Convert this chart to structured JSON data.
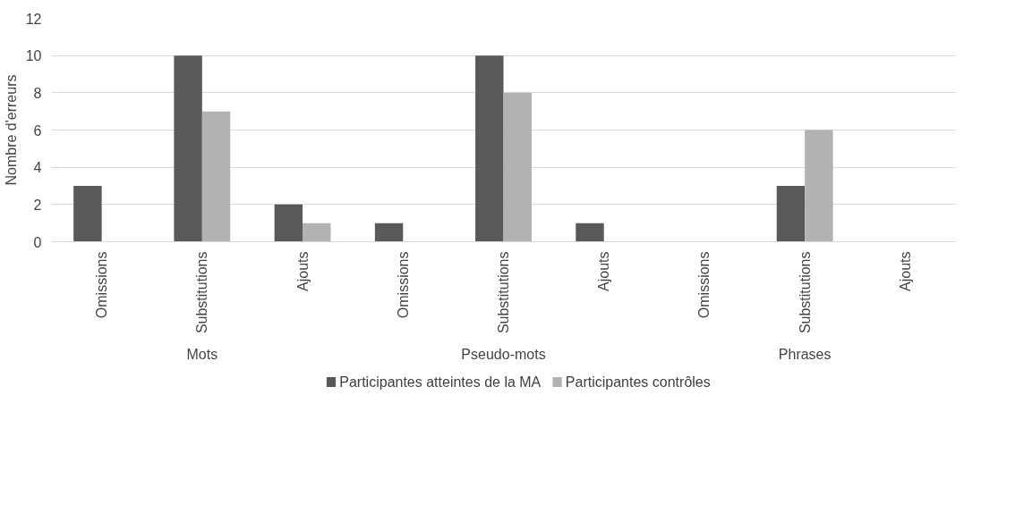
{
  "chart_data": {
    "type": "bar",
    "ylabel": "Nombre d'erreurs",
    "categories": [
      "Omissions",
      "Substitutions",
      "Ajouts",
      "Omissions",
      "Substitutions",
      "Ajouts",
      "Omissions",
      "Substitutions",
      "Ajouts"
    ],
    "annotations": [
      "Mots",
      "Pseudo-mots",
      "Phrases"
    ],
    "series": [
      {
        "name": "Participantes atteintes de la MA",
        "color": "#595959",
        "values": [
          3,
          10,
          2,
          1,
          10,
          1,
          0,
          3,
          0
        ]
      },
      {
        "name": "Participantes contrôles",
        "color": "#b2b2b2",
        "values": [
          0,
          7,
          1,
          0,
          8,
          0,
          0,
          6,
          0
        ]
      }
    ],
    "ylim": [
      0,
      12
    ],
    "yticks": [
      0,
      2,
      4,
      6,
      8,
      10,
      12
    ],
    "grid": "y",
    "legend": "bottom"
  }
}
